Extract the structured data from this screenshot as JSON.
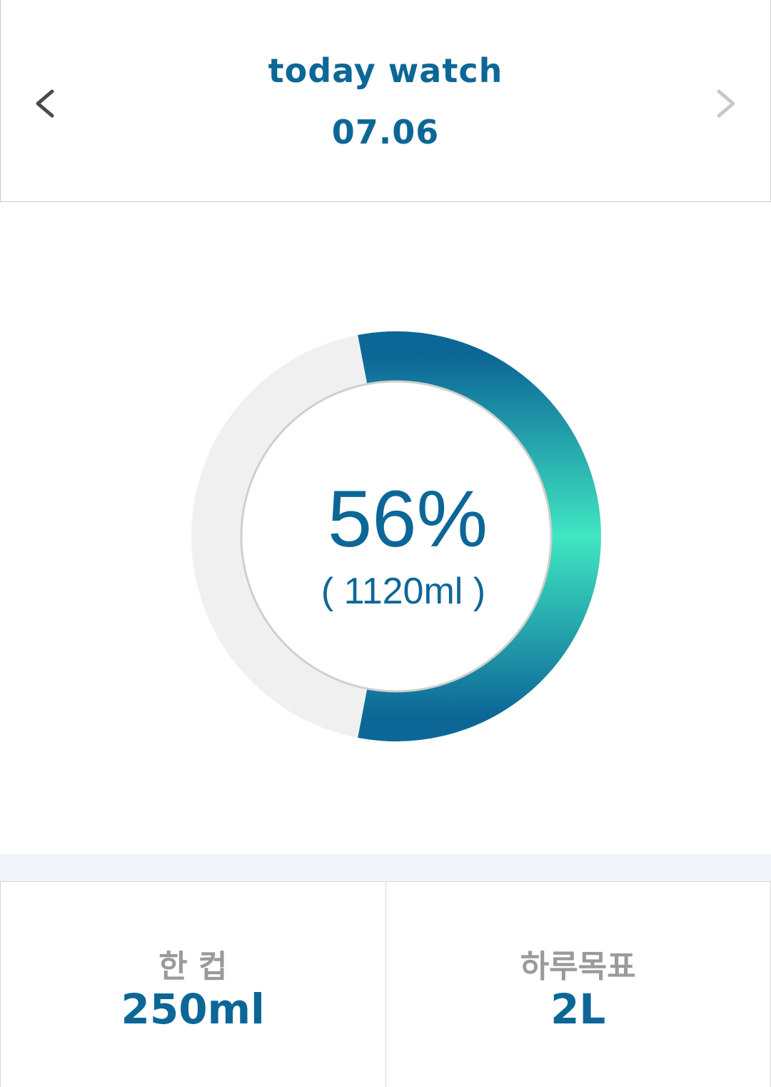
{
  "header": {
    "title": "today watch",
    "date": "07.06",
    "prev_icon": "chevron-left-icon",
    "next_icon": "chevron-right-icon",
    "prev_color": "#4a4a4a",
    "next_color": "#c8c8c8"
  },
  "gauge": {
    "percent_label": "56%",
    "amount_label": "( 1120ml )",
    "progress": 0.56,
    "track_color": "#f0f0f0",
    "gradient_colors": [
      "#0c6797",
      "#40e6c2"
    ]
  },
  "stats": [
    {
      "label": "한 컵",
      "value": "250ml"
    },
    {
      "label": "하루목표",
      "value": "2L"
    }
  ],
  "colors": {
    "accent": "#0c6797",
    "label_gray": "#9a9a9a",
    "band": "#f1f4f8"
  }
}
